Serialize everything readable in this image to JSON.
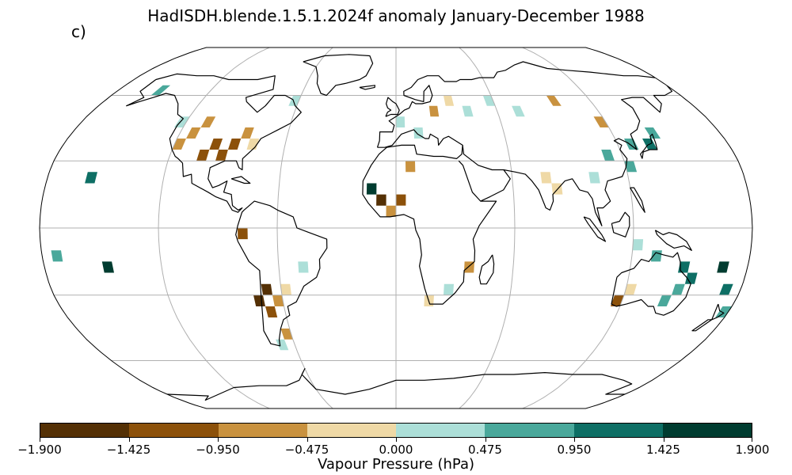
{
  "title": "HadISDH.blende.1.5.1.2024f anomaly January-December 1988",
  "panel_label": "c)",
  "colorbar": {
    "label": "Vapour Pressure (hPa)",
    "ticks": [
      "−1.900",
      "−1.425",
      "−0.950",
      "−0.475",
      "0.000",
      "0.475",
      "0.950",
      "1.425",
      "1.900"
    ],
    "colors": [
      "#543005",
      "#8c510a",
      "#c9923f",
      "#efd9a6",
      "#acdfd8",
      "#4aa89b",
      "#0e6f65",
      "#003c30"
    ]
  },
  "chart_data": {
    "type": "heatmap",
    "title": "HadISDH.blende.1.5.1.2024f anomaly January-December 1988",
    "projection": "robinson",
    "units": "Vapour Pressure (hPa)",
    "vmin": -1.9,
    "vmax": 1.9,
    "levels": [
      -1.9,
      -1.425,
      -0.95,
      -0.475,
      0.0,
      0.475,
      0.95,
      1.425,
      1.9
    ],
    "cells": [
      {
        "lon": -102.5,
        "lat": 32.5,
        "value": -1.2
      },
      {
        "lon": -97.5,
        "lat": 37.5,
        "value": -1.2
      },
      {
        "lon": -92.5,
        "lat": 32.5,
        "value": -1.2
      },
      {
        "lon": -87.5,
        "lat": 37.5,
        "value": -1.2
      },
      {
        "lon": -112.5,
        "lat": 42.5,
        "value": -0.7
      },
      {
        "lon": -107.5,
        "lat": 47.5,
        "value": -0.7
      },
      {
        "lon": -117.5,
        "lat": 37.5,
        "value": -0.7
      },
      {
        "lon": -82.5,
        "lat": 42.5,
        "value": -0.7
      },
      {
        "lon": -77.5,
        "lat": 37.5,
        "value": -0.2
      },
      {
        "lon": -122.5,
        "lat": 47.5,
        "value": 0.2
      },
      {
        "lon": -152.5,
        "lat": 62.5,
        "value": 0.7
      },
      {
        "lon": -157.5,
        "lat": 22.5,
        "value": 1.2
      },
      {
        "lon": -62.5,
        "lat": 57.5,
        "value": 0.2
      },
      {
        "lon": -72.5,
        "lat": -32.5,
        "value": -1.7
      },
      {
        "lon": -67.5,
        "lat": -27.5,
        "value": -1.7
      },
      {
        "lon": -67.5,
        "lat": -37.5,
        "value": -1.2
      },
      {
        "lon": -62.5,
        "lat": -32.5,
        "value": -0.7
      },
      {
        "lon": -57.5,
        "lat": -27.5,
        "value": -0.2
      },
      {
        "lon": -77.5,
        "lat": -2.5,
        "value": -1.2
      },
      {
        "lon": -47.5,
        "lat": -17.5,
        "value": 0.2
      },
      {
        "lon": -62.5,
        "lat": -47.5,
        "value": -0.7
      },
      {
        "lon": -67.5,
        "lat": -52.5,
        "value": 0.2
      },
      {
        "lon": -7.5,
        "lat": 12.5,
        "value": -1.7
      },
      {
        "lon": -12.5,
        "lat": 17.5,
        "value": 1.7
      },
      {
        "lon": 2.5,
        "lat": 12.5,
        "value": -1.2
      },
      {
        "lon": -2.5,
        "lat": 7.5,
        "value": -0.7
      },
      {
        "lon": 7.5,
        "lat": 27.5,
        "value": -0.7
      },
      {
        "lon": 2.5,
        "lat": 47.5,
        "value": 0.2
      },
      {
        "lon": 12.5,
        "lat": 42.5,
        "value": 0.2
      },
      {
        "lon": 22.5,
        "lat": 52.5,
        "value": -0.7
      },
      {
        "lon": 32.5,
        "lat": 57.5,
        "value": -0.2
      },
      {
        "lon": 42.5,
        "lat": 52.5,
        "value": 0.2
      },
      {
        "lon": 57.5,
        "lat": 57.5,
        "value": 0.2
      },
      {
        "lon": 72.5,
        "lat": 52.5,
        "value": 0.2
      },
      {
        "lon": 97.5,
        "lat": 57.5,
        "value": -0.7
      },
      {
        "lon": 117.5,
        "lat": 47.5,
        "value": -0.7
      },
      {
        "lon": 112.5,
        "lat": 32.5,
        "value": 0.7
      },
      {
        "lon": 122.5,
        "lat": 27.5,
        "value": 0.7
      },
      {
        "lon": 127.5,
        "lat": 37.5,
        "value": 0.7
      },
      {
        "lon": 137.5,
        "lat": 37.5,
        "value": 1.2
      },
      {
        "lon": 142.5,
        "lat": 42.5,
        "value": 0.7
      },
      {
        "lon": 102.5,
        "lat": 22.5,
        "value": 0.2
      },
      {
        "lon": 77.5,
        "lat": 22.5,
        "value": -0.2
      },
      {
        "lon": 82.5,
        "lat": 17.5,
        "value": -0.2
      },
      {
        "lon": 122.5,
        "lat": -7.5,
        "value": 0.2
      },
      {
        "lon": 132.5,
        "lat": -12.5,
        "value": 0.7
      },
      {
        "lon": 147.5,
        "lat": -17.5,
        "value": 1.2
      },
      {
        "lon": 152.5,
        "lat": -22.5,
        "value": 1.2
      },
      {
        "lon": 147.5,
        "lat": -27.5,
        "value": 0.7
      },
      {
        "lon": 142.5,
        "lat": -32.5,
        "value": 0.7
      },
      {
        "lon": 122.5,
        "lat": -27.5,
        "value": -0.2
      },
      {
        "lon": 117.5,
        "lat": -32.5,
        "value": -1.2
      },
      {
        "lon": 167.5,
        "lat": -17.5,
        "value": 1.7
      },
      {
        "lon": 172.5,
        "lat": -27.5,
        "value": 1.2
      },
      {
        "lon": 177.5,
        "lat": -37.5,
        "value": 0.7
      },
      {
        "lon": -172.5,
        "lat": -12.5,
        "value": 0.7
      },
      {
        "lon": -147.5,
        "lat": -17.5,
        "value": 1.7
      },
      {
        "lon": 37.5,
        "lat": -17.5,
        "value": -0.7
      },
      {
        "lon": 27.5,
        "lat": -27.5,
        "value": 0.2
      },
      {
        "lon": 17.5,
        "lat": -32.5,
        "value": -0.2
      }
    ]
  }
}
